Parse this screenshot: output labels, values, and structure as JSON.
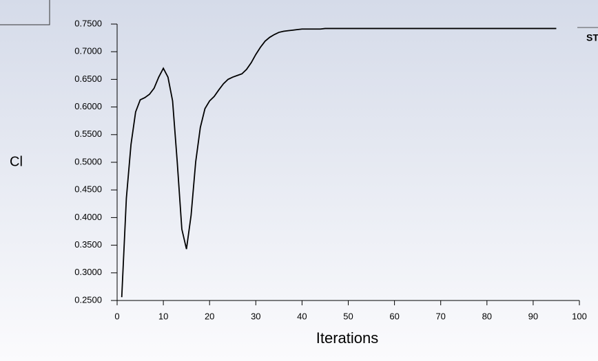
{
  "logo_text": "ST",
  "chart_data": {
    "type": "line",
    "ylabel": "Cl",
    "xlabel": "Iterations",
    "x": [
      1,
      2,
      3,
      4,
      5,
      6,
      7,
      8,
      9,
      10,
      11,
      12,
      13,
      14,
      15,
      16,
      17,
      18,
      19,
      20,
      21,
      22,
      23,
      24,
      25,
      26,
      27,
      28,
      29,
      30,
      31,
      32,
      33,
      34,
      35,
      36,
      37,
      38,
      39,
      40,
      41,
      42,
      43,
      44,
      45,
      46,
      47,
      48,
      49,
      50,
      51,
      52,
      53,
      54,
      55,
      56,
      57,
      58,
      59,
      60,
      61,
      62,
      63,
      64,
      65,
      66,
      67,
      68,
      69,
      70,
      71,
      72,
      73,
      74,
      75,
      76,
      77,
      78,
      79,
      80,
      81,
      82,
      83,
      84,
      85,
      86,
      87,
      88,
      89,
      90,
      91,
      92,
      93,
      94,
      95
    ],
    "series": [
      {
        "color": "#000000",
        "values": [
          0.256,
          0.435,
          0.532,
          0.591,
          0.613,
          0.617,
          0.623,
          0.634,
          0.654,
          0.67,
          0.654,
          0.611,
          0.501,
          0.379,
          0.343,
          0.404,
          0.501,
          0.563,
          0.597,
          0.611,
          0.619,
          0.631,
          0.642,
          0.65,
          0.654,
          0.657,
          0.66,
          0.668,
          0.68,
          0.695,
          0.708,
          0.719,
          0.726,
          0.731,
          0.735,
          0.737,
          0.738,
          0.739,
          0.74,
          0.741,
          0.741,
          0.741,
          0.741,
          0.741,
          0.742,
          0.742,
          0.742,
          0.742,
          0.742,
          0.742,
          0.742,
          0.742,
          0.742,
          0.742,
          0.742,
          0.742,
          0.742,
          0.742,
          0.742,
          0.742,
          0.742,
          0.742,
          0.742,
          0.742,
          0.742,
          0.742,
          0.742,
          0.742,
          0.742,
          0.742,
          0.742,
          0.742,
          0.742,
          0.742,
          0.742,
          0.742,
          0.742,
          0.742,
          0.742,
          0.742,
          0.742,
          0.742,
          0.742,
          0.742,
          0.742,
          0.742,
          0.742,
          0.742,
          0.742,
          0.742,
          0.742,
          0.742,
          0.742,
          0.742,
          0.742
        ]
      }
    ],
    "xlim": [
      0,
      100
    ],
    "xticks": [
      0,
      10,
      20,
      30,
      40,
      50,
      60,
      70,
      80,
      90,
      100
    ],
    "ylim": [
      0.25,
      0.75
    ],
    "yticks": [
      {
        "value": 0.25,
        "label": "0.2500"
      },
      {
        "value": 0.3,
        "label": "0.3000"
      },
      {
        "value": 0.35,
        "label": "0.3500"
      },
      {
        "value": 0.4,
        "label": "0.4000"
      },
      {
        "value": 0.45,
        "label": "0.4500"
      },
      {
        "value": 0.5,
        "label": "0.5000"
      },
      {
        "value": 0.55,
        "label": "0.5500"
      },
      {
        "value": 0.6,
        "label": "0.6000"
      },
      {
        "value": 0.65,
        "label": "0.6500"
      },
      {
        "value": 0.7,
        "label": "0.7000"
      },
      {
        "value": 0.75,
        "label": "0.7500"
      }
    ]
  }
}
